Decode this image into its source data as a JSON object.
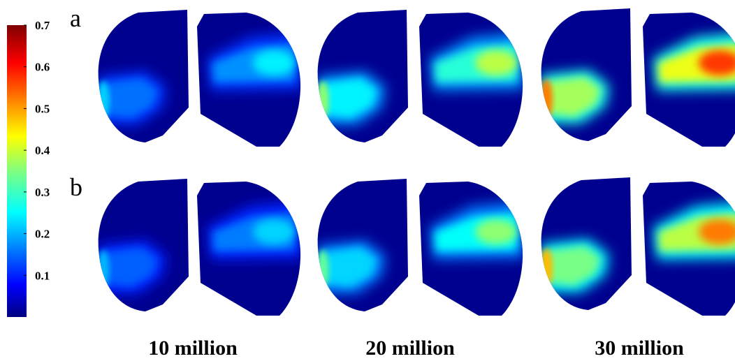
{
  "colorbar": {
    "ticks": [
      "0.7",
      "0.6",
      "0.5",
      "0.4",
      "0.3",
      "0.2",
      "0.1"
    ],
    "tick_values": [
      0.7,
      0.6,
      0.5,
      0.4,
      0.3,
      0.2,
      0.1
    ],
    "range": [
      0,
      0.7
    ],
    "colormap": "jet"
  },
  "rows": [
    {
      "label": "a"
    },
    {
      "label": "b"
    }
  ],
  "columns": [
    {
      "label": "10 million"
    },
    {
      "label": "20 million"
    },
    {
      "label": "30 million"
    }
  ],
  "colors": {
    "background": "#ffffff",
    "shape_fill": "#00008f",
    "text": "#000000"
  }
}
